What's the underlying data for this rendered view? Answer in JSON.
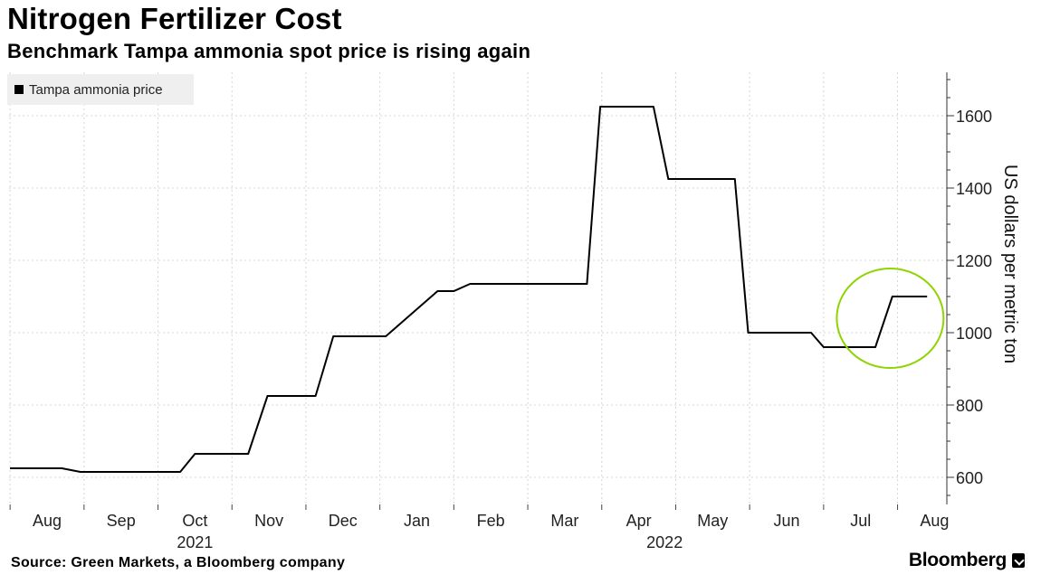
{
  "header": {
    "title": "Nitrogen Fertilizer Cost",
    "subtitle": "Benchmark Tampa ammonia spot price is rising again"
  },
  "footer": {
    "source": "Source: Green Markets, a Bloomberg company",
    "brand": "Bloomberg"
  },
  "colors": {
    "line": "#000000",
    "grid": "#d6d6d6",
    "highlight_circle": "#8fd400",
    "legend_bg": "#efefef"
  },
  "chart_data": {
    "type": "line",
    "title": "Nitrogen Fertilizer Cost",
    "subtitle": "Benchmark Tampa ammonia spot price is rising again",
    "ylabel": "US dollars per metric ton",
    "xlabel": "",
    "ylim": [
      525,
      1720
    ],
    "y_ticks": [
      600,
      800,
      1000,
      1200,
      1400,
      1600
    ],
    "x_ticks": [
      {
        "label": "Aug",
        "month": 0
      },
      {
        "label": "Sep",
        "month": 1
      },
      {
        "label": "Oct",
        "month": 2
      },
      {
        "label": "Nov",
        "month": 3
      },
      {
        "label": "Dec",
        "month": 4
      },
      {
        "label": "Jan",
        "month": 5
      },
      {
        "label": "Feb",
        "month": 6
      },
      {
        "label": "Mar",
        "month": 7
      },
      {
        "label": "Apr",
        "month": 8
      },
      {
        "label": "May",
        "month": 9
      },
      {
        "label": "Jun",
        "month": 10
      },
      {
        "label": "Jul",
        "month": 11
      },
      {
        "label": "Aug",
        "month": 12
      }
    ],
    "year_labels": [
      {
        "label": "2021",
        "month": 2
      },
      {
        "label": "2022",
        "month": 8.35
      }
    ],
    "legend_position": "top-left",
    "grid": true,
    "series": [
      {
        "name": "Tampa ammonia price",
        "x_months": [
          -0.5,
          0.2,
          0.45,
          1.8,
          2.0,
          2.72,
          2.98,
          3.63,
          3.87,
          4.58,
          5.28,
          5.5,
          5.72,
          7.3,
          7.48,
          8.2,
          8.4,
          9.3,
          9.48,
          10.33,
          10.5,
          11.2,
          11.43,
          11.9
        ],
        "values": [
          625,
          625,
          615,
          615,
          665,
          665,
          825,
          825,
          990,
          990,
          1115,
          1115,
          1135,
          1135,
          1625,
          1625,
          1425,
          1425,
          1000,
          1000,
          960,
          960,
          1100,
          1100
        ]
      }
    ],
    "annotations": [
      {
        "type": "circle",
        "label": "",
        "center_month": 11.4,
        "center_value": 1040
      }
    ]
  }
}
